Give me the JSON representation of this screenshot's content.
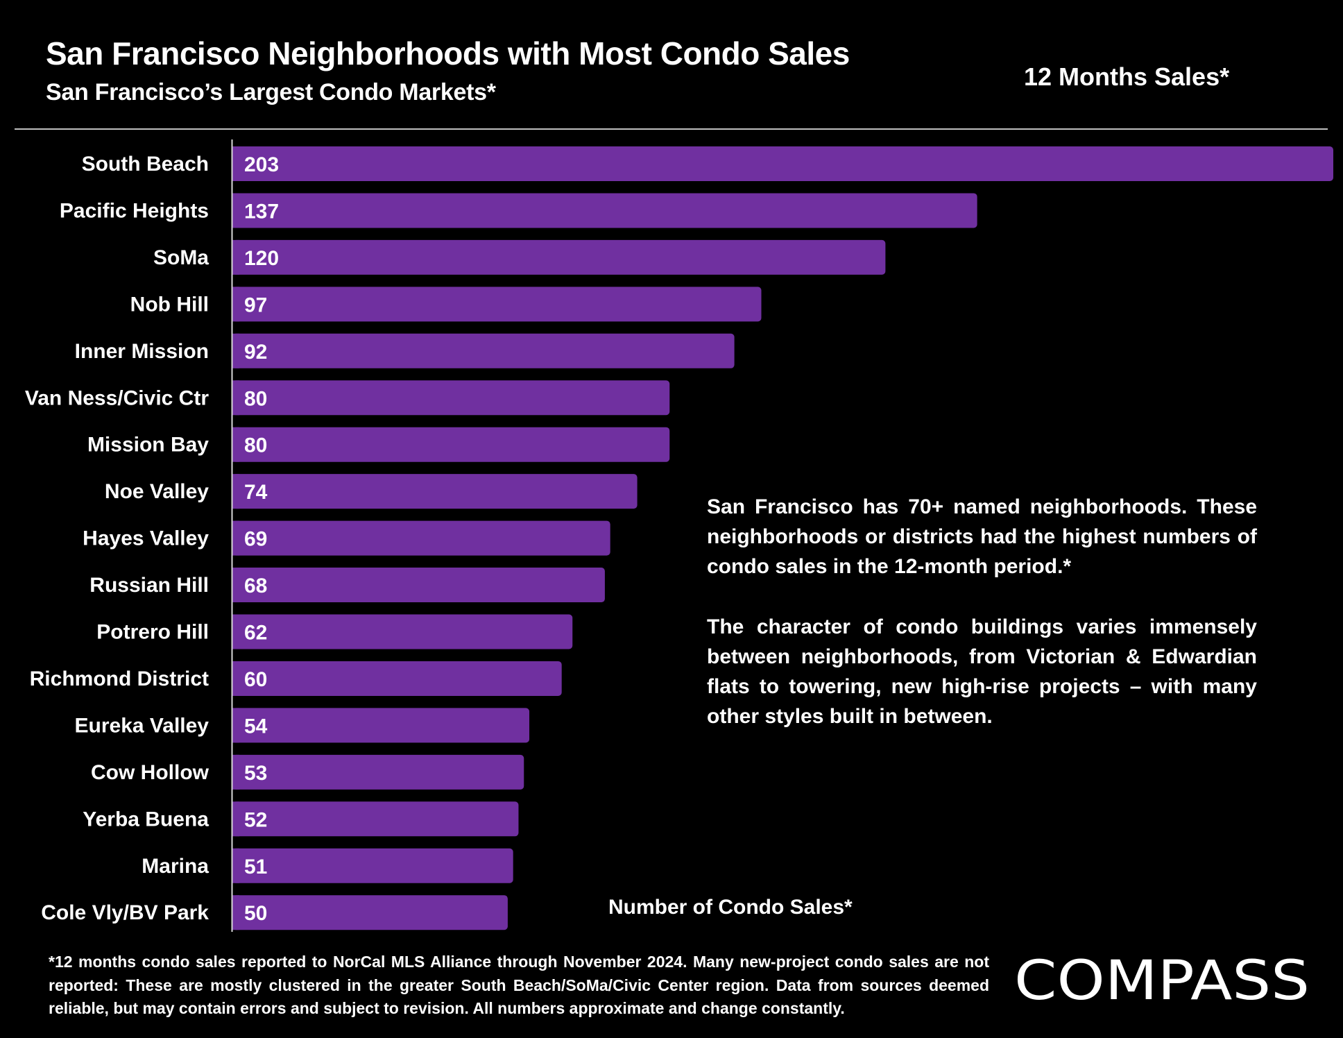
{
  "header": {
    "title": "San Francisco Neighborhoods with Most Condo Sales",
    "subtitle": "San Francisco’s Largest Condo Markets*",
    "period": "12 Months Sales*"
  },
  "description": {
    "paragraph1": "San Francisco has 70+ named neighborhoods. These neighborhoods or districts had the highest numbers of condo sales in the 12-month period.*",
    "paragraph2": "The character of condo buildings varies immensely between neighborhoods, from Victorian & Edwardian flats to towering, new high-rise projects – with many other styles built in between."
  },
  "footnote": "*12 months condo sales reported to NorCal MLS Alliance through November 2024. Many new-project condo sales are not reported:  These are mostly clustered in the greater South Beach/SoMa/Civic Center region. Data from sources deemed reliable, but may contain errors and subject to revision. All numbers approximate and change constantly.",
  "brand": {
    "logo_text": "COMPASS"
  },
  "colors": {
    "bar": "#7030A0",
    "background": "#000000",
    "text": "#FFFFFF"
  },
  "chart_data": {
    "type": "bar",
    "orientation": "horizontal",
    "title": "San Francisco Neighborhoods with Most Condo Sales",
    "subtitle": "San Francisco’s Largest Condo Markets*",
    "xlabel": "Number of Condo Sales*",
    "ylabel": "",
    "legend": "none",
    "grid": false,
    "xlim": [
      0,
      203
    ],
    "categories": [
      "South Beach",
      "Pacific Heights",
      "SoMa",
      "Nob Hill",
      "Inner Mission",
      "Van Ness/Civic Ctr",
      "Mission Bay",
      "Noe Valley",
      "Hayes Valley",
      "Russian Hill",
      "Potrero Hill",
      "Richmond District",
      "Eureka Valley",
      "Cow Hollow",
      "Yerba Buena",
      "Marina",
      "Cole Vly/BV Park"
    ],
    "values": [
      203,
      137,
      120,
      97,
      92,
      80,
      80,
      74,
      69,
      68,
      62,
      60,
      54,
      53,
      52,
      51,
      50
    ],
    "data_labels": true
  }
}
